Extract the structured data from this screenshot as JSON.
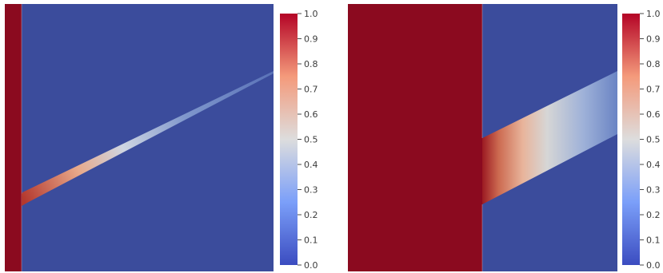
{
  "colors": {
    "background": "#ffffff",
    "low": "#3b4c9c",
    "high": "#8b0a1f",
    "mid": "#dcdcdc",
    "colormap": "cool-to-warm (blue-white-red)"
  },
  "colorbar": {
    "min": 0.0,
    "max": 1.0,
    "ticks": [
      "0.0",
      "0.1",
      "0.2",
      "0.3",
      "0.4",
      "0.5",
      "0.6",
      "0.7",
      "0.8",
      "0.9",
      "1.0"
    ]
  },
  "panels": [
    {
      "name": "left",
      "description_values": {
        "left_strip": 1.0,
        "background": 0.0,
        "crack_start_value": 0.85,
        "crack_end_value": 0.2
      }
    },
    {
      "name": "right",
      "description_values": {
        "left_block": 1.0,
        "background": 0.0,
        "band_start_value": 0.95,
        "band_end_value": 0.25
      }
    }
  ]
}
